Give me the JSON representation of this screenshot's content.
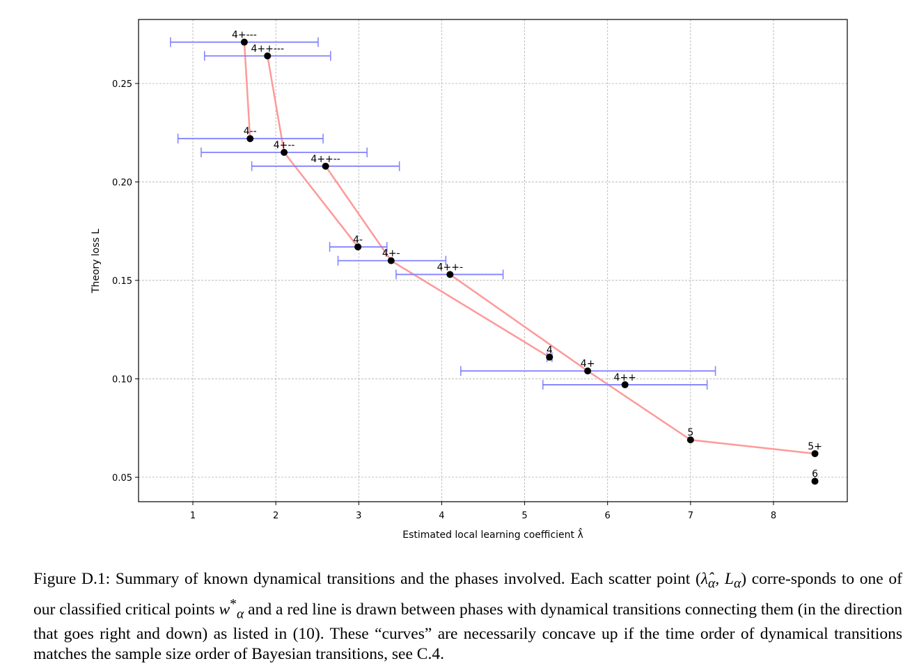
{
  "chart_data": {
    "type": "scatter",
    "xlabel": "Estimated local learning coefficient λ̂",
    "ylabel": "Theory loss L",
    "xlim": [
      0.345,
      8.89
    ],
    "ylim": [
      0.0376,
      0.2825
    ],
    "xticks": [
      1,
      2,
      3,
      4,
      5,
      6,
      7,
      8
    ],
    "yticks": [
      0.05,
      0.1,
      0.15,
      0.2,
      0.25
    ],
    "ytick_labels": [
      "0.05",
      "0.10",
      "0.15",
      "0.20",
      "0.25"
    ],
    "grid": true,
    "points": [
      {
        "label": "4+---",
        "x": 1.62,
        "y": 0.271,
        "err": [
          0.73,
          2.51
        ]
      },
      {
        "label": "4++---",
        "x": 1.9,
        "y": 0.264,
        "err": [
          1.14,
          2.66
        ]
      },
      {
        "label": "4--",
        "x": 1.69,
        "y": 0.222,
        "err": [
          0.82,
          2.57
        ]
      },
      {
        "label": "4+--",
        "x": 2.1,
        "y": 0.215,
        "err": [
          1.1,
          3.1
        ]
      },
      {
        "label": "4++--",
        "x": 2.6,
        "y": 0.208,
        "err": [
          1.71,
          3.49
        ]
      },
      {
        "label": "4-",
        "x": 2.99,
        "y": 0.167,
        "err": [
          2.65,
          3.34
        ]
      },
      {
        "label": "4+-",
        "x": 3.39,
        "y": 0.16,
        "err": [
          2.75,
          4.05
        ]
      },
      {
        "label": "4++-",
        "x": 4.1,
        "y": 0.153,
        "err": [
          3.45,
          4.74
        ]
      },
      {
        "label": "4",
        "x": 5.3,
        "y": 0.111,
        "err": [
          5.27,
          5.33
        ]
      },
      {
        "label": "4+",
        "x": 5.76,
        "y": 0.104,
        "err": [
          4.23,
          7.3
        ]
      },
      {
        "label": "4++",
        "x": 6.21,
        "y": 0.097,
        "err": [
          5.22,
          7.2
        ]
      },
      {
        "label": "5",
        "x": 7.0,
        "y": 0.069,
        "err": null
      },
      {
        "label": "5+",
        "x": 8.5,
        "y": 0.062,
        "err": null
      },
      {
        "label": "6",
        "x": 8.5,
        "y": 0.048,
        "err": null
      }
    ],
    "transitions": [
      [
        "4+---",
        "4--"
      ],
      [
        "4++---",
        "4+--"
      ],
      [
        "4+--",
        "4-"
      ],
      [
        "4++--",
        "4+-"
      ],
      [
        "4+-",
        "4"
      ],
      [
        "4++-",
        "4+"
      ],
      [
        "4+",
        "5"
      ],
      [
        "5",
        "5+"
      ]
    ],
    "colors": {
      "point": "#000000",
      "errorbar": "#8080ff",
      "transition": "#ff9999",
      "grid": "#b0b0b0"
    }
  },
  "caption": {
    "prefix": "Figure D.1: Summary of known dynamical transitions and the phases involved. Each scatter point (",
    "lambda_hat": "λ̂",
    "alpha": "α",
    "comma_L": ", L",
    "after_point": ") corre-sponds to one of our classified critical points ",
    "w": "w",
    "star": "*",
    "suffix": " and a red line is drawn between phases with dynamical transitions connecting them (in the direction that goes right and down) as listed in (10). These “curves” are necessarily concave up if the time order of dynamical transitions matches the sample size order of Bayesian transitions, see C.4."
  }
}
